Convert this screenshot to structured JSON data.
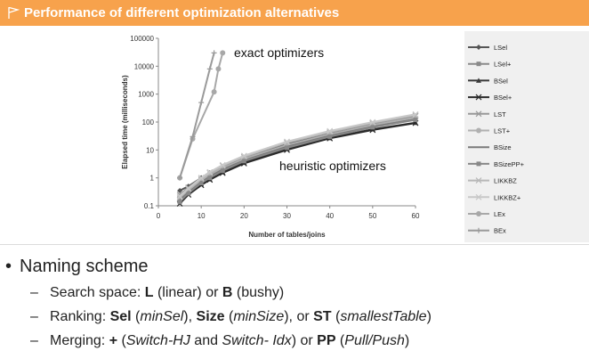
{
  "header": {
    "title": "Performance of different optimization alternatives"
  },
  "chart_data": {
    "type": "line",
    "title": "",
    "xlabel": "Number of tables/joins",
    "ylabel": "Elapsed time (milliseconds)",
    "xlim": [
      0,
      60
    ],
    "ylim": [
      0.1,
      100000
    ],
    "y_scale": "log",
    "x_ticks": [
      "0",
      "10",
      "20",
      "30",
      "40",
      "50",
      "60"
    ],
    "y_ticks": [
      "0.1",
      "1",
      "10",
      "100",
      "1000",
      "10000",
      "100000"
    ],
    "annotations": [
      "exact optimizers",
      "heuristic optimizers"
    ],
    "legend_position": "right",
    "x": [
      5,
      7,
      10,
      12,
      15,
      20,
      30,
      40,
      50,
      60
    ],
    "series": [
      {
        "name": "LSel",
        "color": "#555555",
        "values": [
          0.35,
          0.5,
          1.0,
          1.5,
          2.5,
          5,
          16,
          38,
          80,
          145
        ]
      },
      {
        "name": "LSel+",
        "color": "#8a8a8a",
        "values": [
          0.2,
          0.35,
          0.8,
          1.2,
          2.0,
          4.5,
          14,
          33,
          70,
          130
        ]
      },
      {
        "name": "BSel",
        "color": "#3a3a3a",
        "values": [
          0.15,
          0.3,
          0.6,
          0.9,
          1.6,
          3.5,
          11,
          27,
          55,
          95
        ]
      },
      {
        "name": "BSel+",
        "color": "#2a2a2a",
        "values": [
          0.12,
          0.25,
          0.55,
          0.85,
          1.5,
          3.3,
          10,
          26,
          52,
          92
        ]
      },
      {
        "name": "LST",
        "color": "#999999",
        "values": [
          0.25,
          0.45,
          1.0,
          1.6,
          2.8,
          5.5,
          18,
          42,
          90,
          165
        ]
      },
      {
        "name": "LST+",
        "color": "#b0b0b0",
        "values": [
          0.18,
          0.35,
          0.8,
          1.3,
          2.3,
          4.8,
          15,
          36,
          78,
          145
        ]
      },
      {
        "name": "BSize",
        "color": "#7a7a7a",
        "values": [
          0.16,
          0.3,
          0.7,
          1.1,
          2.0,
          4.2,
          13,
          32,
          68,
          125
        ]
      },
      {
        "name": "BSizePP+",
        "color": "#888888",
        "values": [
          0.14,
          0.28,
          0.65,
          1.0,
          1.8,
          4.0,
          12,
          30,
          65,
          120
        ]
      },
      {
        "name": "LIKKBZ",
        "color": "#b8b8b8",
        "values": [
          0.2,
          0.4,
          0.9,
          1.5,
          2.7,
          5.8,
          19,
          45,
          95,
          180
        ]
      },
      {
        "name": "LIKKBZ+",
        "color": "#c8c8c8",
        "values": [
          0.22,
          0.42,
          1.0,
          1.6,
          2.9,
          6.2,
          20,
          48,
          100,
          190
        ]
      },
      {
        "name": "LEx",
        "color": "#a8a8a8",
        "x": [
          5,
          8,
          13,
          14,
          15
        ],
        "values": [
          1,
          25,
          1200,
          8000,
          30000
        ]
      },
      {
        "name": "BEx",
        "color": "#9a9a9a",
        "x": [
          5,
          8,
          10,
          12,
          13
        ],
        "values": [
          1,
          30,
          500,
          8000,
          30000
        ]
      }
    ]
  },
  "bullets": {
    "main": "Naming scheme",
    "dash": "–",
    "line1": {
      "label": "Search space: ",
      "k1": "L",
      "t1": " (linear) or ",
      "k2": "B",
      "t2": " (bushy)"
    },
    "line2": {
      "label": "Ranking: ",
      "k1": "Sel",
      "t1": " (",
      "i1": "minSel",
      "t2": "), ",
      "k2": "Size",
      "t3": " (",
      "i2": "minSize",
      "t4": "), or ",
      "k3": "ST",
      "t5": " (",
      "i3": "smallestTable",
      "t6": ")"
    },
    "line3": {
      "label": "Merging: ",
      "k1": "+",
      "t1": " (",
      "i1": "Switch-HJ",
      "t2": " and ",
      "i2": "Switch- Idx",
      "t3": ") or ",
      "k2": "PP",
      "t4": " (",
      "i3": "Pull/Push",
      "t5": ")"
    }
  }
}
